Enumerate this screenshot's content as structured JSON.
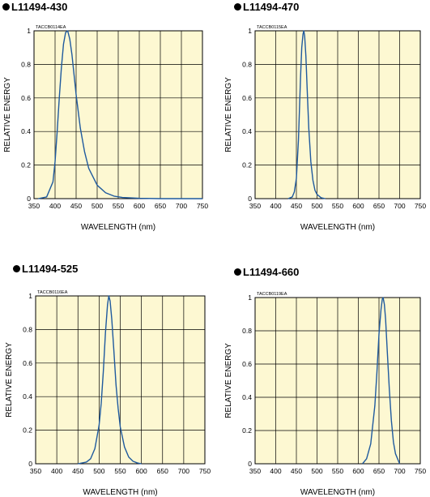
{
  "chart_data": [
    {
      "type": "line",
      "title": "L11494-430",
      "code": "TACCB0114EA",
      "xlabel": "WAVELENGTH (nm)",
      "ylabel": "RELATIVE ENERGY",
      "xlim": [
        350,
        750
      ],
      "ylim": [
        0,
        1
      ],
      "xticks": [
        350,
        400,
        450,
        500,
        550,
        600,
        650,
        700,
        750
      ],
      "yticks": [
        0,
        0.2,
        0.4,
        0.6,
        0.8,
        1
      ],
      "grid": true,
      "series": [
        {
          "color": "#1f5a9e",
          "x": [
            360,
            380,
            395,
            400,
            405,
            410,
            415,
            420,
            425,
            430,
            435,
            440,
            445,
            450,
            460,
            470,
            480,
            500,
            520,
            540,
            560,
            600,
            650,
            700,
            750
          ],
          "y": [
            0,
            0.01,
            0.1,
            0.22,
            0.4,
            0.6,
            0.78,
            0.92,
            0.99,
            1.0,
            0.95,
            0.86,
            0.74,
            0.62,
            0.42,
            0.28,
            0.18,
            0.08,
            0.035,
            0.015,
            0.007,
            0.002,
            0,
            0,
            0
          ]
        }
      ]
    },
    {
      "type": "line",
      "title": "L11494-470",
      "code": "TACCB0115EA",
      "xlabel": "WAVELENGTH (nm)",
      "ylabel": "RELATIVE ENERGY",
      "xlim": [
        350,
        750
      ],
      "ylim": [
        0,
        1
      ],
      "xticks": [
        350,
        400,
        450,
        500,
        550,
        600,
        650,
        700,
        750
      ],
      "yticks": [
        0,
        0.2,
        0.4,
        0.6,
        0.8,
        1
      ],
      "grid": true,
      "series": [
        {
          "color": "#1f5a9e",
          "x": [
            430,
            440,
            445,
            450,
            455,
            460,
            463,
            466,
            468,
            470,
            473,
            476,
            480,
            485,
            490,
            495,
            500,
            510,
            520
          ],
          "y": [
            0,
            0.01,
            0.04,
            0.12,
            0.35,
            0.72,
            0.9,
            0.98,
            1.0,
            0.97,
            0.85,
            0.66,
            0.42,
            0.22,
            0.11,
            0.05,
            0.025,
            0.005,
            0
          ]
        }
      ]
    },
    {
      "type": "line",
      "title": "L11494-525",
      "code": "TACCB0116EA",
      "xlabel": "WAVELENGTH (nm)",
      "ylabel": "RELATIVE ENERGY",
      "xlim": [
        350,
        750
      ],
      "ylim": [
        0,
        1
      ],
      "xticks": [
        350,
        400,
        450,
        500,
        550,
        600,
        650,
        700,
        750
      ],
      "yticks": [
        0,
        0.2,
        0.4,
        0.6,
        0.8,
        1
      ],
      "grid": true,
      "series": [
        {
          "color": "#1f5a9e",
          "x": [
            450,
            470,
            480,
            490,
            500,
            505,
            510,
            515,
            520,
            523,
            526,
            530,
            535,
            540,
            545,
            550,
            560,
            570,
            580,
            590,
            600
          ],
          "y": [
            0,
            0.01,
            0.03,
            0.09,
            0.23,
            0.36,
            0.55,
            0.78,
            0.95,
            1.0,
            0.97,
            0.86,
            0.67,
            0.47,
            0.33,
            0.22,
            0.1,
            0.04,
            0.015,
            0.005,
            0
          ]
        }
      ]
    },
    {
      "type": "line",
      "title": "L11494-660",
      "code": "TACCB0119EA",
      "xlabel": "WAVELENGTH (nm)",
      "ylabel": "RELATIVE ENERGY",
      "xlim": [
        350,
        750
      ],
      "ylim": [
        0,
        1
      ],
      "xticks": [
        350,
        400,
        450,
        500,
        550,
        600,
        650,
        700,
        750
      ],
      "yticks": [
        0,
        0.2,
        0.4,
        0.6,
        0.8,
        1
      ],
      "grid": true,
      "series": [
        {
          "color": "#1f5a9e",
          "x": [
            610,
            620,
            630,
            640,
            645,
            650,
            655,
            658,
            660,
            663,
            666,
            670,
            675,
            680,
            685,
            690,
            700
          ],
          "y": [
            0,
            0.03,
            0.12,
            0.35,
            0.55,
            0.78,
            0.93,
            0.99,
            1.0,
            0.96,
            0.87,
            0.68,
            0.45,
            0.26,
            0.13,
            0.06,
            0
          ]
        }
      ]
    }
  ]
}
